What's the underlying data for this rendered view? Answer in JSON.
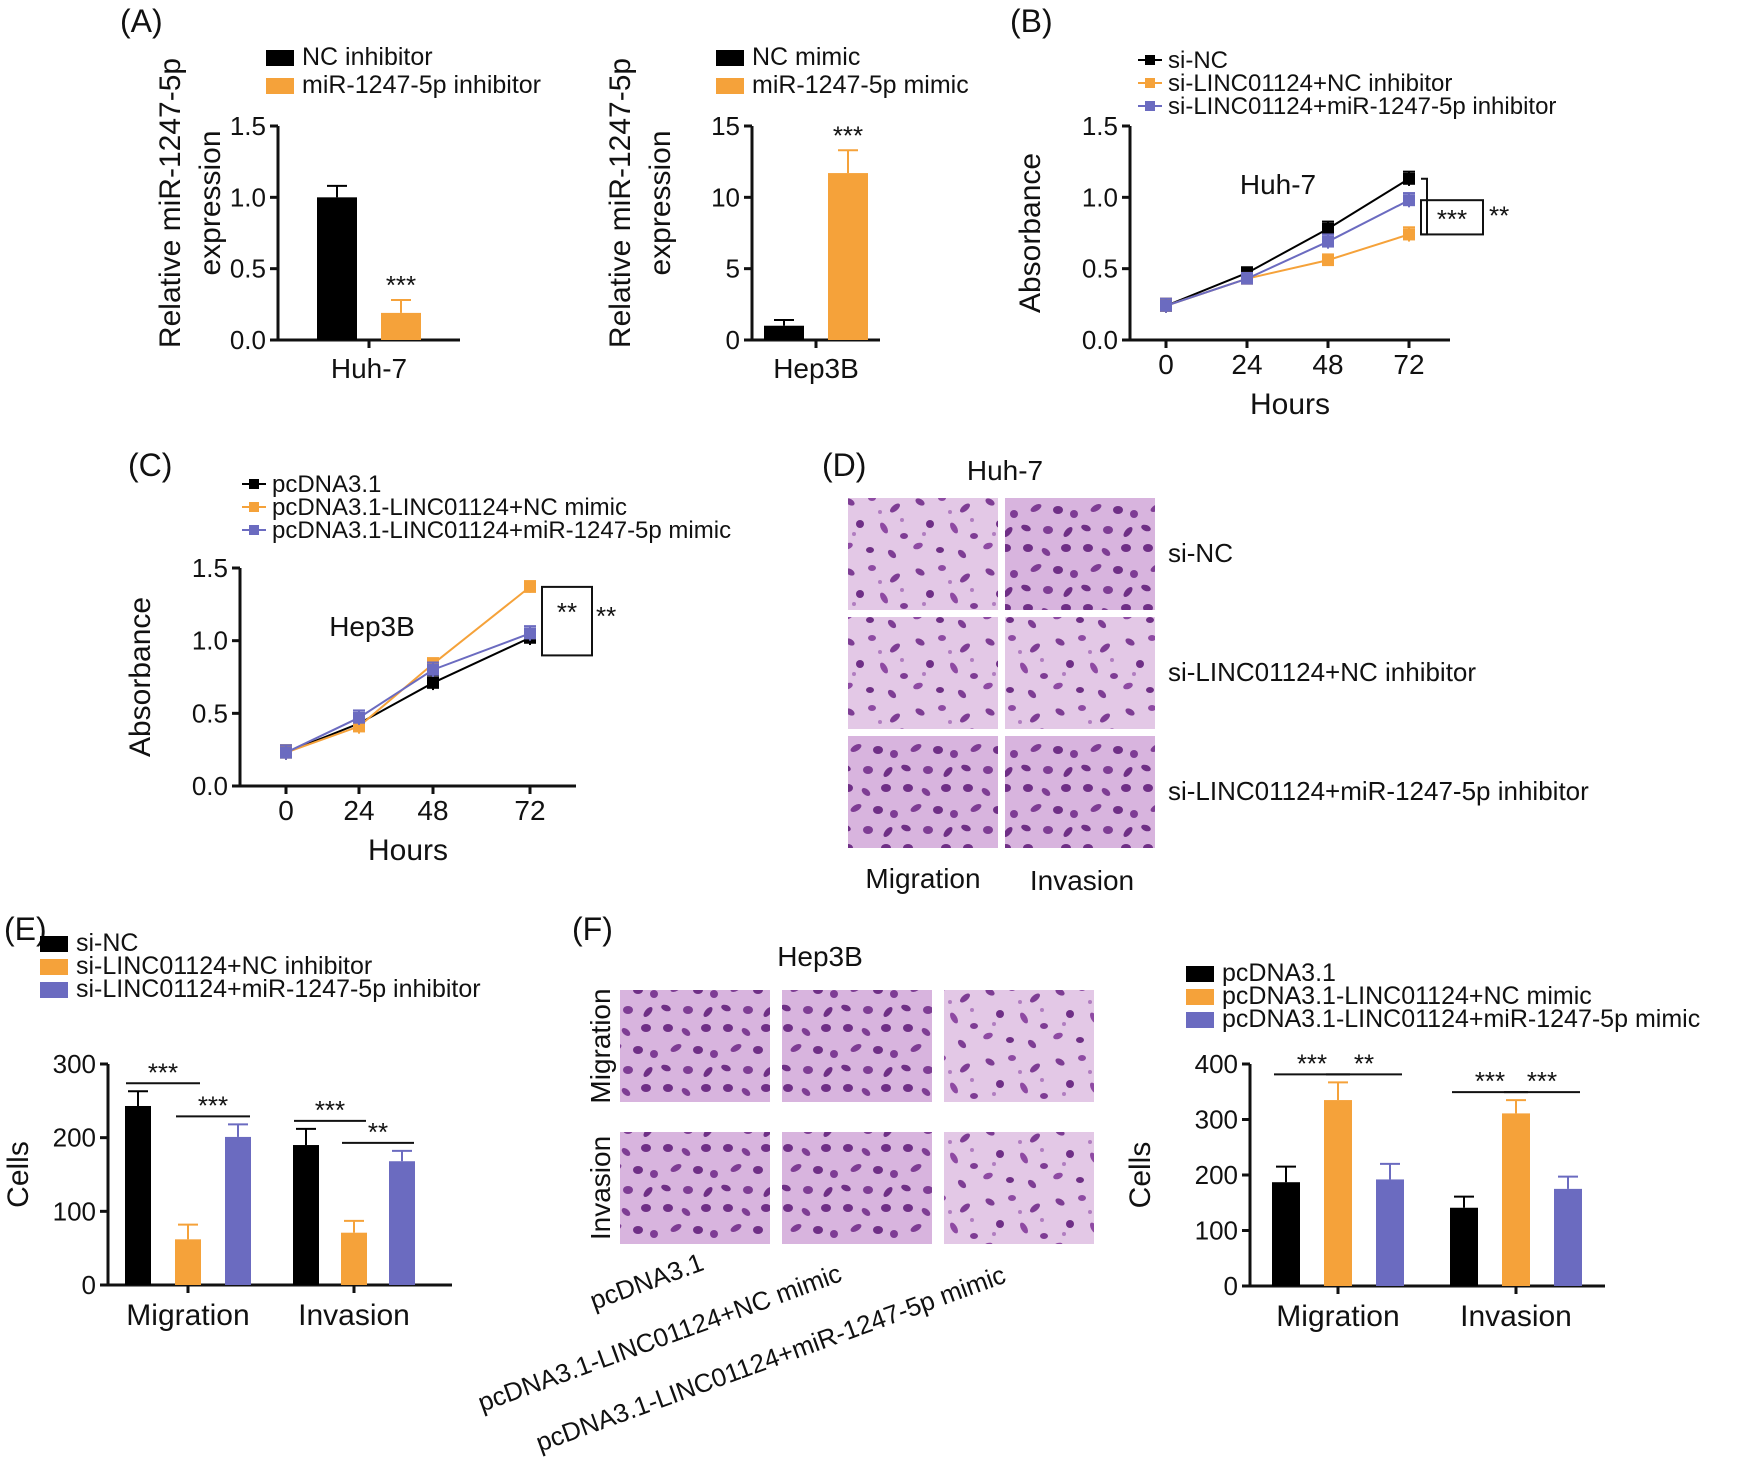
{
  "colors": {
    "black": "#000000",
    "orange": "#F5A23A",
    "blue": "#6B6BC0",
    "grid": "#FFFFFF",
    "stain_bg": "#E3C8E6",
    "stain_cell": "#7E3D94"
  },
  "panel_labels": {
    "A": "(A)",
    "B": "(B)",
    "C": "(C)",
    "D": "(D)",
    "E": "(E)",
    "F": "(F)"
  },
  "chart_data": [
    {
      "id": "A1",
      "type": "bar",
      "title": "",
      "xlabel": "Huh-7",
      "ylabel": "Relative miR-1247-5p expression",
      "ylim": [
        0,
        1.5
      ],
      "yticks": [
        "0.0",
        "0.5",
        "1.0",
        "1.5"
      ],
      "series": [
        {
          "name": "NC inhibitor",
          "color": "#000000",
          "values": [
            1.0
          ],
          "errors": [
            0.08
          ]
        },
        {
          "name": "miR-1247-5p inhibitor",
          "color": "#F5A23A",
          "values": [
            0.19
          ],
          "errors": [
            0.09
          ],
          "sig": "***"
        }
      ]
    },
    {
      "id": "A2",
      "type": "bar",
      "title": "",
      "xlabel": "Hep3B",
      "ylabel": "Relative miR-1247-5p expression",
      "ylim": [
        0,
        15
      ],
      "yticks": [
        "0",
        "5",
        "10",
        "15"
      ],
      "series": [
        {
          "name": "NC mimic",
          "color": "#000000",
          "values": [
            1.0
          ],
          "errors": [
            0.4
          ]
        },
        {
          "name": "miR-1247-5p mimic",
          "color": "#F5A23A",
          "values": [
            11.7
          ],
          "errors": [
            1.6
          ],
          "sig": "***"
        }
      ]
    },
    {
      "id": "B",
      "type": "line",
      "annotation": "Huh-7",
      "xlabel": "Hours",
      "ylabel": "Absorbance",
      "x": [
        0,
        24,
        48,
        72
      ],
      "xticks": [
        "0",
        "24",
        "48",
        "72"
      ],
      "ylim": [
        0,
        1.5
      ],
      "yticks": [
        "0.0",
        "0.5",
        "1.0",
        "1.5"
      ],
      "series": [
        {
          "name": "si-NC",
          "color": "#000000",
          "values": [
            0.24,
            0.47,
            0.78,
            1.13
          ],
          "errors": [
            0.05,
            0.04,
            0.05,
            0.05
          ]
        },
        {
          "name": "si-LINC01124+NC inhibitor",
          "color": "#F5A23A",
          "values": [
            0.24,
            0.43,
            0.56,
            0.74
          ],
          "errors": [
            0.05,
            0.04,
            0.04,
            0.05
          ]
        },
        {
          "name": "si-LINC01124+miR-1247-5p inhibitor",
          "color": "#6B6BC0",
          "values": [
            0.24,
            0.43,
            0.69,
            0.98
          ],
          "errors": [
            0.05,
            0.04,
            0.05,
            0.05
          ]
        }
      ],
      "sig_inner": "***",
      "sig_outer": "**"
    },
    {
      "id": "C",
      "type": "line",
      "annotation": "Hep3B",
      "xlabel": "Hours",
      "ylabel": "Absorbance",
      "x": [
        0,
        24,
        48,
        72
      ],
      "xticks": [
        "0",
        "24",
        "48",
        "72"
      ],
      "ylim": [
        0,
        1.5
      ],
      "yticks": [
        "0.0",
        "0.5",
        "1.0",
        "1.5"
      ],
      "series": [
        {
          "name": "pcDNA3.1",
          "color": "#000000",
          "values": [
            0.23,
            0.43,
            0.71,
            1.02
          ],
          "errors": [
            0.05,
            0.05,
            0.05,
            0.05
          ]
        },
        {
          "name": "pcDNA3.1-LINC01124+NC mimic",
          "color": "#F5A23A",
          "values": [
            0.23,
            0.41,
            0.84,
            1.37
          ],
          "errors": [
            0.05,
            0.05,
            0.04,
            0.04
          ]
        },
        {
          "name": "pcDNA3.1-LINC01124+miR-1247-5p mimic",
          "color": "#6B6BC0",
          "values": [
            0.23,
            0.47,
            0.8,
            1.05
          ],
          "errors": [
            0.05,
            0.05,
            0.05,
            0.05
          ]
        }
      ],
      "sig_inner": "**",
      "sig_outer": "**"
    },
    {
      "id": "E",
      "type": "bar",
      "title": "",
      "xlabel": "",
      "ylabel": "Cells",
      "categories": [
        "Migration",
        "Invasion"
      ],
      "ylim": [
        0,
        300
      ],
      "yticks": [
        "0",
        "100",
        "200",
        "300"
      ],
      "series": [
        {
          "name": "si-NC",
          "color": "#000000",
          "values": [
            243,
            190
          ],
          "errors": [
            20,
            22
          ]
        },
        {
          "name": "si-LINC01124+NC inhibitor",
          "color": "#F5A23A",
          "values": [
            62,
            71
          ],
          "errors": [
            20,
            16
          ]
        },
        {
          "name": "si-LINC01124+miR-1247-5p inhibitor",
          "color": "#6B6BC0",
          "values": [
            201,
            168
          ],
          "errors": [
            17,
            14
          ]
        }
      ],
      "sig_pairs": [
        {
          "group": 0,
          "from": 0,
          "to": 1,
          "label": "***"
        },
        {
          "group": 0,
          "from": 1,
          "to": 2,
          "label": "***"
        },
        {
          "group": 1,
          "from": 0,
          "to": 1,
          "label": "***"
        },
        {
          "group": 1,
          "from": 1,
          "to": 2,
          "label": "**"
        }
      ]
    },
    {
      "id": "F",
      "type": "bar",
      "title": "",
      "xlabel": "",
      "ylabel": "Cells",
      "categories": [
        "Migration",
        "Invasion"
      ],
      "ylim": [
        0,
        400
      ],
      "yticks": [
        "0",
        "100",
        "200",
        "300",
        "400"
      ],
      "series": [
        {
          "name": "pcDNA3.1",
          "color": "#000000",
          "values": [
            187,
            141
          ],
          "errors": [
            28,
            20
          ]
        },
        {
          "name": "pcDNA3.1-LINC01124+NC mimic",
          "color": "#F5A23A",
          "values": [
            335,
            311
          ],
          "errors": [
            32,
            24
          ]
        },
        {
          "name": "pcDNA3.1-LINC01124+miR-1247-5p mimic",
          "color": "#6B6BC0",
          "values": [
            192,
            175
          ],
          "errors": [
            28,
            22
          ]
        }
      ],
      "sig_pairs": [
        {
          "group": 0,
          "from": 0,
          "to": 1,
          "label": "***"
        },
        {
          "group": 0,
          "from": 1,
          "to": 2,
          "label": "**"
        },
        {
          "group": 1,
          "from": 0,
          "to": 1,
          "label": "***"
        },
        {
          "group": 1,
          "from": 1,
          "to": 2,
          "label": "***"
        }
      ]
    }
  ],
  "panel_D": {
    "title": "Huh-7",
    "rows": [
      "si-NC",
      "si-LINC01124+NC inhibitor",
      "si-LINC01124+miR-1247-5p inhibitor"
    ],
    "columns": [
      "Migration",
      "Invasion"
    ]
  },
  "panel_F_images": {
    "title": "Hep3B",
    "rows": [
      "Migration",
      "Invasion"
    ],
    "columns": [
      "pcDNA3.1",
      "pcDNA3.1-LINC01124+NC mimic",
      "pcDNA3.1-LINC01124+miR-1247-5p mimic"
    ]
  }
}
